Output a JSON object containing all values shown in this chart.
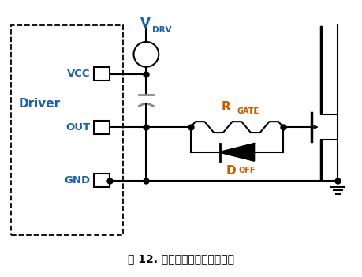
{
  "title": "图 12. 简单的关断速度增强电路",
  "bg_color": "#ffffff",
  "line_color": "#000000",
  "gray_color": "#888888",
  "label_color_blue": "#1a5fa8",
  "label_color_orange": "#c85a00",
  "vdrv_label": "V",
  "vdrv_sub": "DRV",
  "rgate_label": "R",
  "rgate_sub": "GATE",
  "doff_label": "D",
  "doff_sub": "OFF",
  "driver_label": "Driver",
  "vcc_label": "VCC",
  "out_label": "OUT",
  "gnd_label": "GND",
  "fig_label": "图",
  "fig_num": " 12.",
  "fig_desc": " 简单的关断速度增强电路"
}
